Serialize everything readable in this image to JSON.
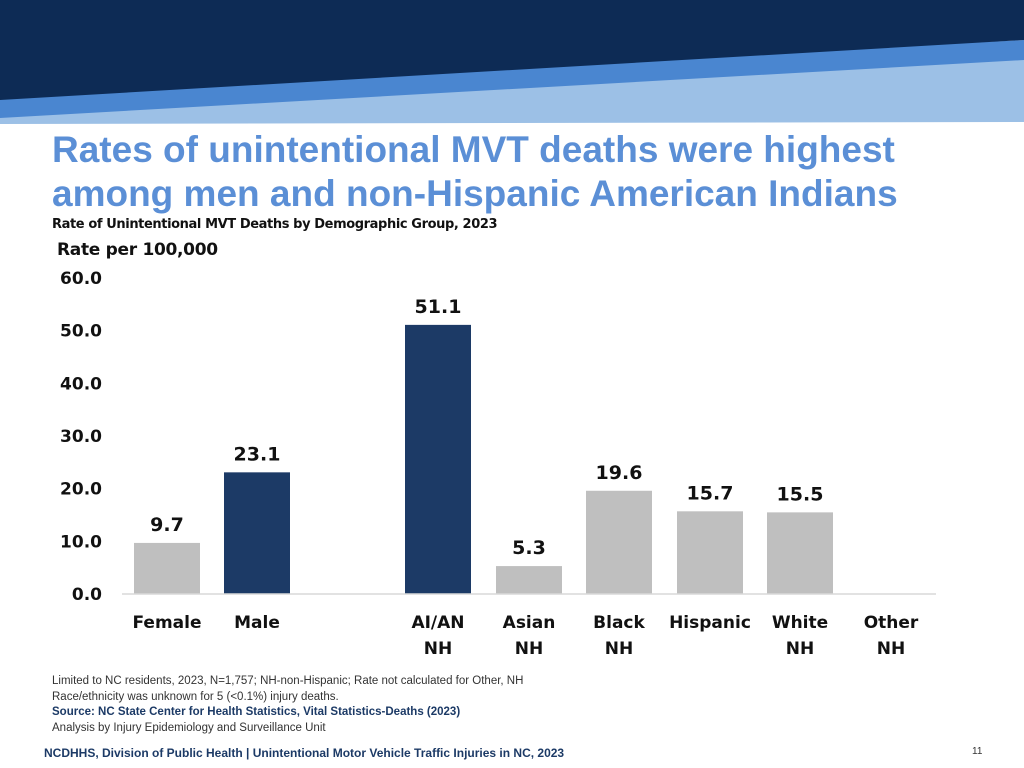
{
  "colors": {
    "banner_dark": "#0d2b55",
    "banner_blue": "#4a86d0",
    "banner_light": "#9cc0e6",
    "title": "#5b8fd6",
    "bar_highlight": "#1c3a66",
    "bar_default": "#bfbfbf"
  },
  "header": {
    "title_line1": "Rates of unintentional MVT deaths were highest",
    "title_line2": "among men and non-Hispanic American Indians",
    "subtitle": "Rate of Unintentional MVT Deaths by Demographic Group, 2023"
  },
  "chart_data": {
    "type": "bar",
    "ylabel": "Rate per 100,000",
    "ylim": [
      0,
      60
    ],
    "yticks": [
      "0.0",
      "10.0",
      "20.0",
      "30.0",
      "40.0",
      "50.0",
      "60.0"
    ],
    "gridlines": false,
    "categories": [
      {
        "line1": "Female",
        "line2": ""
      },
      {
        "line1": "Male",
        "line2": ""
      },
      {
        "line1": "AI/AN",
        "line2": "NH"
      },
      {
        "line1": "Asian",
        "line2": "NH"
      },
      {
        "line1": "Black",
        "line2": "NH"
      },
      {
        "line1": "Hispanic",
        "line2": ""
      },
      {
        "line1": "White",
        "line2": "NH"
      },
      {
        "line1": "Other",
        "line2": "NH"
      }
    ],
    "values": [
      9.7,
      23.1,
      51.1,
      5.3,
      19.6,
      15.7,
      15.5,
      null
    ],
    "value_labels": [
      "9.7",
      "23.1",
      "51.1",
      "5.3",
      "19.6",
      "15.7",
      "15.5",
      ""
    ],
    "highlighted": [
      false,
      true,
      true,
      false,
      false,
      false,
      false,
      false
    ]
  },
  "notes": {
    "line1": "Limited to NC residents, 2023, N=1,757; NH-non-Hispanic; Rate not calculated for Other, NH",
    "line2": "Race/ethnicity was unknown for 5 (<0.1%) injury deaths.",
    "source": "Source: NC State Center for Health Statistics, Vital Statistics-Deaths (2023)",
    "analysis": "Analysis by Injury Epidemiology and Surveillance Unit"
  },
  "footer": {
    "text": "NCDHHS, Division of Public Health | Unintentional Motor Vehicle Traffic Injuries in NC, 2023",
    "page_number": "11"
  }
}
